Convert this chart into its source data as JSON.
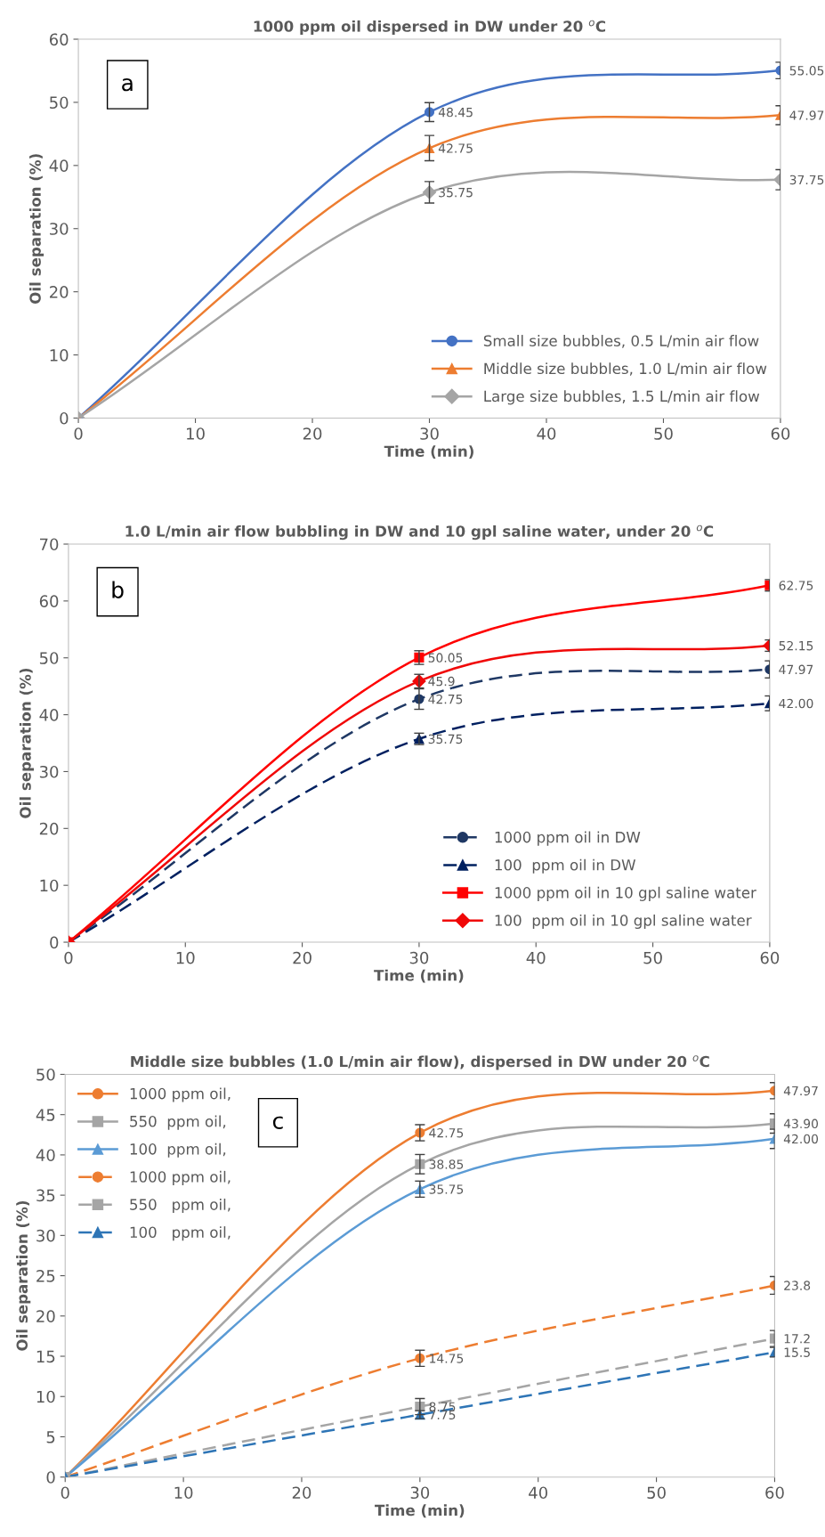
{
  "chart_data": [
    {
      "type": "line",
      "title": "1000 ppm oil dispersed in DW under 20 $^{o}$C",
      "xlabel": "Time (min)",
      "ylabel": "Oil separation (%)",
      "x": [
        0,
        30,
        60
      ],
      "xlim": [
        0,
        60
      ],
      "xticks": [
        0,
        10,
        20,
        30,
        40,
        50,
        60
      ],
      "ylim": [
        0,
        60
      ],
      "yticks": [
        0,
        10,
        20,
        30,
        40,
        50,
        60
      ],
      "grid": false,
      "legend": "bottom right",
      "annotations": [
        "a"
      ],
      "series": [
        {
          "name": "Small size bubbles, 0.5 L/min air flow",
          "color": "#4472c4",
          "marker": "circle",
          "line_style": "solid",
          "values": [
            0,
            48.45,
            55.05
          ],
          "errors": [
            null,
            1.5,
            1.3
          ],
          "value_labels": [
            null,
            "48.45",
            "55.05"
          ]
        },
        {
          "name": "Middle size bubbles, 1.0 L/min air flow",
          "color": "#ed7d31",
          "marker": "triangle",
          "line_style": "solid",
          "values": [
            0,
            42.75,
            47.97
          ],
          "errors": [
            null,
            2.0,
            1.5
          ],
          "value_labels": [
            null,
            "42.75",
            "47.97"
          ]
        },
        {
          "name": "Large size bubbles, 1.5 L/min air flow",
          "color": "#a5a5a5",
          "marker": "diamond",
          "line_style": "solid",
          "values": [
            0,
            35.75,
            37.75
          ],
          "errors": [
            null,
            1.7,
            1.6
          ],
          "value_labels": [
            null,
            "35.75",
            "37.75"
          ]
        }
      ]
    },
    {
      "type": "line",
      "title": "1.0 L/min air flow bubbling in DW and 10 gpl saline water, under 20 $^{o}$C",
      "xlabel": "Time (min)",
      "ylabel": "Oil separation (%)",
      "x": [
        0,
        30,
        60
      ],
      "xlim": [
        0,
        60
      ],
      "xticks": [
        0,
        10,
        20,
        30,
        40,
        50,
        60
      ],
      "ylim": [
        0,
        70
      ],
      "yticks": [
        0,
        10,
        20,
        30,
        40,
        50,
        60,
        70
      ],
      "grid": false,
      "legend": "bottom right",
      "annotations": [
        "b"
      ],
      "series": [
        {
          "name": "1000 ppm oil in DW",
          "color": "#1f3864",
          "marker": "circle",
          "line_style": "dashed",
          "values": [
            0,
            42.75,
            47.97
          ],
          "errors": [
            null,
            1.8,
            1.5
          ],
          "value_labels": [
            null,
            "42.75",
            "47.97"
          ]
        },
        {
          "name": "100  ppm oil in DW",
          "color": "#002060",
          "marker": "triangle",
          "line_style": "dashed",
          "values": [
            0,
            35.75,
            42.0
          ],
          "errors": [
            null,
            1.0,
            1.3
          ],
          "value_labels": [
            null,
            "35.75",
            "42.00"
          ]
        },
        {
          "name": "1000 ppm oil in 10 gpl saline water",
          "color": "#ff0000",
          "marker": "square",
          "line_style": "solid",
          "values": [
            0,
            50.05,
            62.75
          ],
          "errors": [
            null,
            1.2,
            1.0
          ],
          "value_labels": [
            null,
            "50.05",
            "62.75"
          ]
        },
        {
          "name": "100  ppm oil in 10 gpl saline water",
          "color": "#f00808",
          "marker": "diamond",
          "line_style": "solid",
          "values": [
            0,
            45.9,
            52.15
          ],
          "errors": [
            null,
            1.2,
            1.0
          ],
          "value_labels": [
            null,
            "45.9",
            "52.15"
          ]
        }
      ]
    },
    {
      "type": "line",
      "title": "Middle size bubbles (1.0 L/min air flow), dispersed in DW under 20 $^{o}$C",
      "xlabel": "Time (min)",
      "ylabel": "Oil separation (%)",
      "x": [
        0,
        30,
        60
      ],
      "xlim": [
        0,
        60
      ],
      "xticks": [
        0,
        10,
        20,
        30,
        40,
        50,
        60
      ],
      "ylim": [
        0,
        50
      ],
      "yticks": [
        0,
        5,
        10,
        15,
        20,
        25,
        30,
        35,
        40,
        45,
        50
      ],
      "grid": false,
      "legend": "top left",
      "annotations": [
        "c"
      ],
      "series": [
        {
          "name": "1000 ppm oil,",
          "color": "#ed7d31",
          "marker": "circle",
          "line_style": "solid",
          "values": [
            0,
            42.75,
            47.97
          ],
          "errors": [
            null,
            1.0,
            1.0
          ],
          "value_labels": [
            null,
            "42.75",
            "47.97"
          ]
        },
        {
          "name": "550  ppm oil,",
          "color": "#a5a5a5",
          "marker": "square",
          "line_style": "solid",
          "values": [
            0,
            38.85,
            43.9
          ],
          "errors": [
            null,
            1.2,
            1.2
          ],
          "value_labels": [
            null,
            "38.85",
            "43.90"
          ]
        },
        {
          "name": "100  ppm oil,",
          "color": "#5b9bd5",
          "marker": "triangle",
          "line_style": "solid",
          "values": [
            0,
            35.75,
            42.0
          ],
          "errors": [
            null,
            1.0,
            1.2
          ],
          "value_labels": [
            null,
            "35.75",
            "42.00"
          ]
        },
        {
          "name": "1000 ppm oil,",
          "color": "#ed7d31",
          "marker": "circle",
          "line_style": "dashed",
          "values": [
            0,
            14.75,
            23.8
          ],
          "errors": [
            null,
            1.0,
            1.1
          ],
          "value_labels": [
            null,
            "14.75",
            "23.8"
          ]
        },
        {
          "name": "550   ppm oil,",
          "color": "#a5a5a5",
          "marker": "square",
          "line_style": "dashed",
          "values": [
            0,
            8.75,
            17.2
          ],
          "errors": [
            null,
            1.0,
            1.0
          ],
          "value_labels": [
            null,
            "8.75",
            "17.2"
          ]
        },
        {
          "name": "100   ppm oil,",
          "color": "#2e75b6",
          "marker": "triangle",
          "line_style": "dashed",
          "values": [
            0,
            7.75,
            15.5
          ],
          "errors": [
            null,
            0.5,
            0.6
          ],
          "value_labels": [
            null,
            "7.75",
            "15.5"
          ]
        }
      ]
    }
  ]
}
